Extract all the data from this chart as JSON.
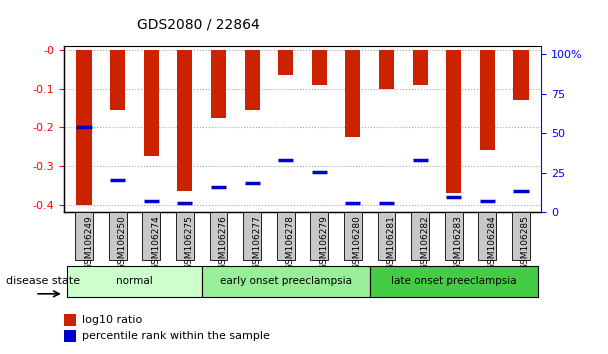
{
  "title": "GDS2080 / 22864",
  "samples": [
    "GSM106249",
    "GSM106250",
    "GSM106274",
    "GSM106275",
    "GSM106276",
    "GSM106277",
    "GSM106278",
    "GSM106279",
    "GSM106280",
    "GSM106281",
    "GSM106282",
    "GSM106283",
    "GSM106284",
    "GSM106285"
  ],
  "log10_ratio": [
    -0.4,
    -0.155,
    -0.275,
    -0.365,
    -0.175,
    -0.155,
    -0.065,
    -0.09,
    -0.225,
    -0.1,
    -0.09,
    -0.37,
    -0.26,
    -0.13
  ],
  "percentile_pos": [
    -0.2,
    -0.335,
    -0.39,
    -0.395,
    -0.355,
    -0.345,
    -0.285,
    -0.315,
    -0.395,
    -0.395,
    -0.285,
    -0.38,
    -0.39,
    -0.365
  ],
  "groups": [
    {
      "label": "normal",
      "start": 0,
      "end": 4,
      "color": "#ccffcc"
    },
    {
      "label": "early onset preeclampsia",
      "start": 4,
      "end": 9,
      "color": "#99ee99"
    },
    {
      "label": "late onset preeclampsia",
      "start": 9,
      "end": 14,
      "color": "#44cc44"
    }
  ],
  "ylim_left": [
    -0.42,
    0.01
  ],
  "ylim_right": [
    0,
    105
  ],
  "yticks_left": [
    0.0,
    -0.1,
    -0.2,
    -0.3,
    -0.4
  ],
  "yticks_right": [
    100,
    75,
    50,
    25,
    0
  ],
  "bar_color": "#cc2200",
  "blue_color": "#0000cc",
  "background_color": "#ffffff",
  "tick_bg_color": "#c8c8c8"
}
